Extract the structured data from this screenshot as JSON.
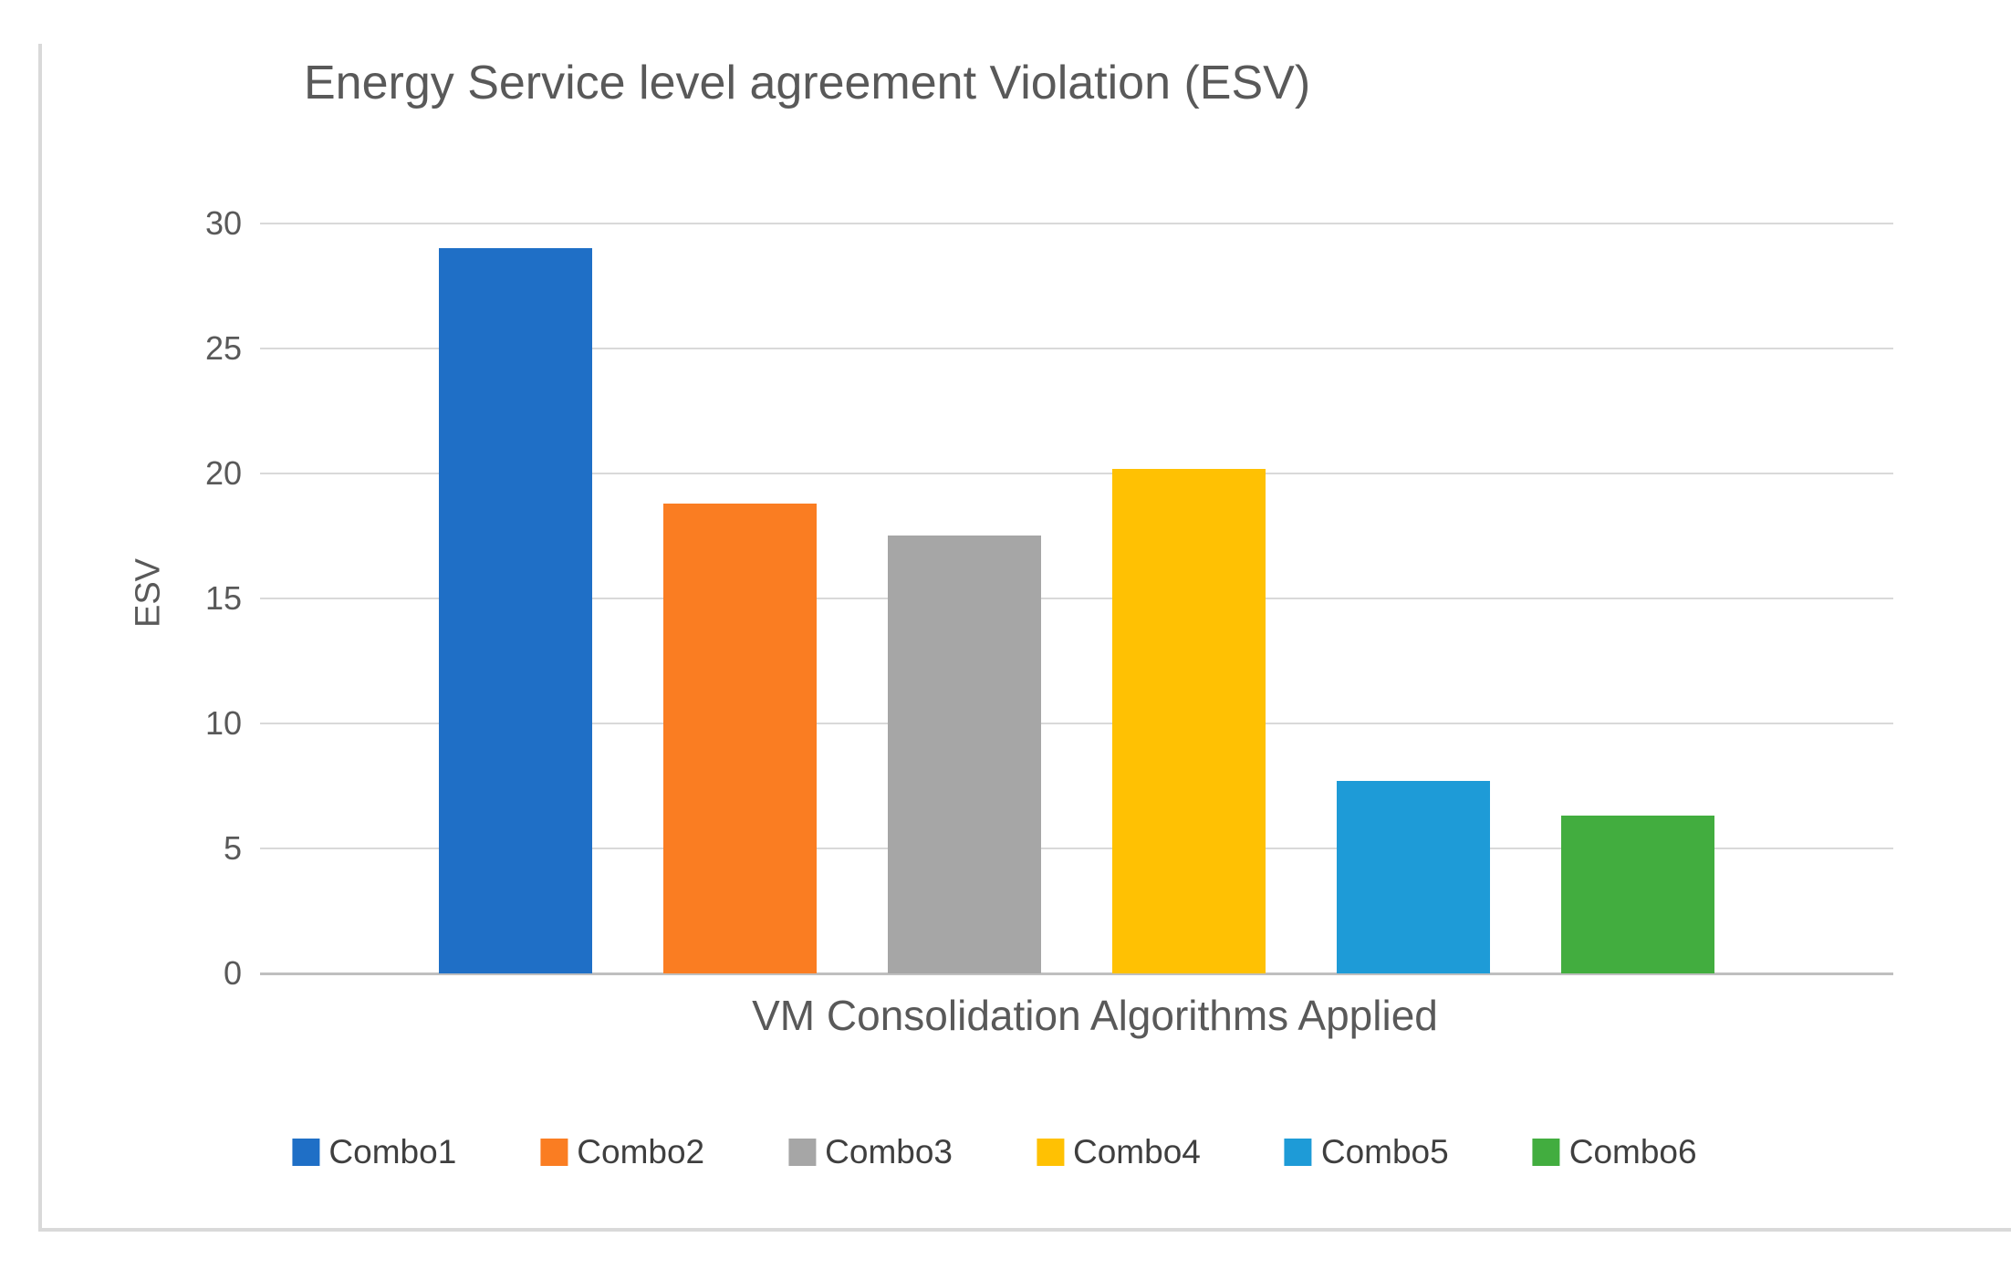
{
  "chart_data": {
    "type": "bar",
    "title": "Energy Service level agreement Violation (ESV)",
    "xlabel": "VM Consolidation Algorithms Applied",
    "ylabel": "ESV",
    "categories": [
      "Combo1",
      "Combo2",
      "Combo3",
      "Combo4",
      "Combo5",
      "Combo6"
    ],
    "values": [
      29,
      18.8,
      17.5,
      20.2,
      7.7,
      6.3
    ],
    "colors": [
      "#1f6fc6",
      "#fa7d22",
      "#a6a6a6",
      "#ffc103",
      "#1e9bd7",
      "#42ad3f"
    ],
    "ylim": [
      0,
      30
    ],
    "yticks": [
      0,
      5,
      10,
      15,
      20,
      25,
      30
    ],
    "grid": true,
    "legend_position": "bottom",
    "gridline_color": "#d9d9d9",
    "baseline_color": "#bfbfbf",
    "text_color": "#595959",
    "legend_text_color": "#3f3f3f"
  }
}
